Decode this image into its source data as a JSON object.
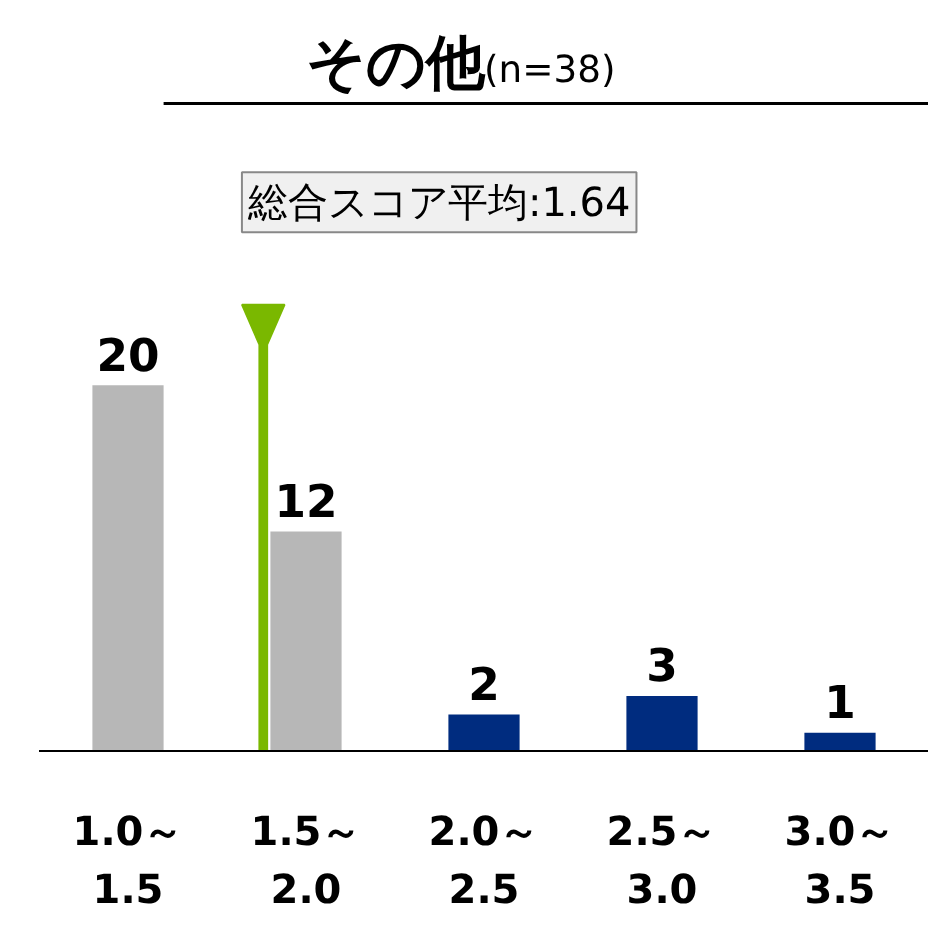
{
  "chart_data": {
    "type": "bar",
    "title": "その他",
    "subtitle": "(n=38)",
    "categories": [
      "1.0～\n1.5",
      "1.5～\n2.0",
      "2.0～\n2.5",
      "2.5～\n3.0",
      "3.0～\n3.5"
    ],
    "values": [
      20,
      12,
      2,
      3,
      1
    ],
    "colors": [
      "#b7b7b7",
      "#b7b7b7",
      "#002c7f",
      "#002c7f",
      "#002c7f"
    ],
    "ref_lines": [
      {
        "axis": "x",
        "value": "1.5～\n2.0",
        "label": "総合スコア平均:1.64",
        "color": "#7ab800"
      }
    ],
    "data_labels": true,
    "grid": false
  }
}
